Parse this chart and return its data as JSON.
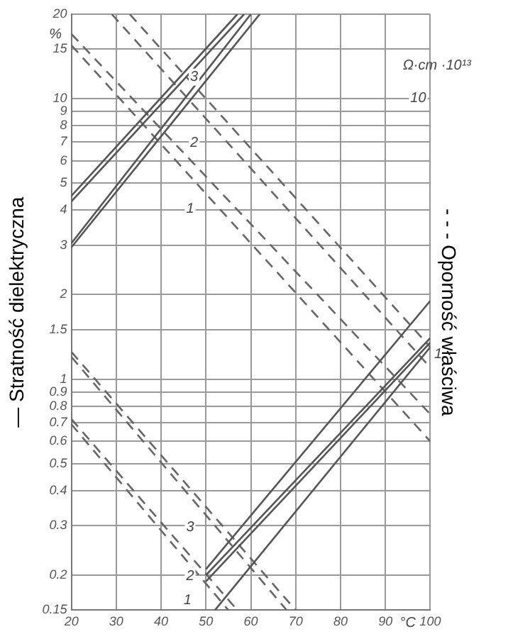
{
  "chart_data": {
    "type": "line",
    "xlabel": "°C",
    "ylabel": "— Stratność dielektryczna",
    "y2label": "- - - Oporność właściwa",
    "xlim": [
      20,
      100
    ],
    "xticks": [
      20,
      30,
      40,
      50,
      60,
      70,
      80,
      90,
      {
        "value": 100,
        "label": "100"
      }
    ],
    "ylim": [
      0.15,
      20
    ],
    "yticks": [
      0.15,
      0.2,
      0.3,
      0.4,
      0.5,
      0.6,
      0.7,
      0.8,
      0.9,
      1,
      1.5,
      2,
      3,
      4,
      5,
      6,
      7,
      8,
      9,
      10,
      15,
      20
    ],
    "log": "y",
    "grid": true,
    "legend": false,
    "marker": "none",
    "series": [
      {
        "color": "#555555",
        "line_style": "solid",
        "x": [
          20,
          57
        ],
        "values": [
          4.5,
          20
        ]
      },
      {
        "color": "#555555",
        "line_style": "solid",
        "x": [
          20,
          58.5
        ],
        "values": [
          4.3,
          20
        ]
      },
      {
        "color": "#555555",
        "line_style": "solid",
        "x": [
          20,
          60
        ],
        "values": [
          3.05,
          20
        ]
      },
      {
        "color": "#555555",
        "line_style": "solid",
        "x": [
          20,
          62
        ],
        "values": [
          2.95,
          20
        ]
      },
      {
        "color": "#555555",
        "line_style": "solid",
        "x": [
          50,
          100
        ],
        "values": [
          0.21,
          1.9
        ]
      },
      {
        "color": "#555555",
        "line_style": "solid",
        "x": [
          50,
          100
        ],
        "values": [
          0.2,
          1.4
        ]
      },
      {
        "color": "#555555",
        "line_style": "solid",
        "x": [
          50,
          100
        ],
        "values": [
          0.19,
          1.35
        ]
      },
      {
        "color": "#555555",
        "line_style": "solid",
        "x": [
          52,
          100
        ],
        "values": [
          0.15,
          1.3
        ]
      },
      {
        "color": "#666666",
        "line_style": "dashed",
        "x": [
          20,
          100
        ],
        "values": [
          17,
          0.75
        ]
      },
      {
        "color": "#666666",
        "line_style": "dashed",
        "x": [
          20,
          100
        ],
        "values": [
          15.5,
          0.6
        ]
      },
      {
        "color": "#666666",
        "line_style": "dashed",
        "x": [
          29,
          100
        ],
        "values": [
          20,
          1.1
        ]
      },
      {
        "color": "#666666",
        "line_style": "dashed",
        "x": [
          33,
          100
        ],
        "values": [
          20,
          1.3
        ]
      },
      {
        "color": "#666666",
        "line_style": "dashed",
        "x": [
          20,
          70
        ],
        "values": [
          1.25,
          0.15
        ]
      },
      {
        "color": "#666666",
        "line_style": "dashed",
        "x": [
          20,
          68
        ],
        "values": [
          1.2,
          0.15
        ]
      },
      {
        "color": "#666666",
        "line_style": "dashed",
        "x": [
          20,
          57
        ],
        "values": [
          0.72,
          0.15
        ]
      },
      {
        "color": "#666666",
        "line_style": "dashed",
        "x": [
          20,
          55
        ],
        "values": [
          0.69,
          0.15
        ]
      }
    ],
    "annotations": [
      "%",
      "Ω·cm ·10¹³",
      "10",
      "3",
      "2",
      "1",
      "3",
      "2",
      "1",
      "1"
    ]
  }
}
